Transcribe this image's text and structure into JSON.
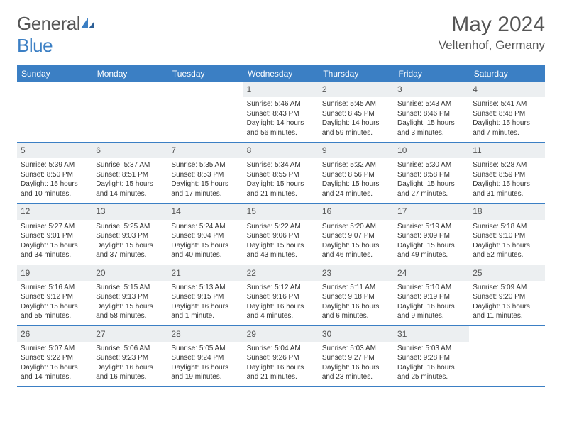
{
  "logo": {
    "pre": "General",
    "blue": "Blue"
  },
  "title": {
    "month_year": "May 2024",
    "location": "Veltenhof, Germany"
  },
  "style": {
    "header_bg": "#3b7fc4",
    "header_fg": "#ffffff",
    "daynum_bg": "#eceff1",
    "border": "#3b7fc4",
    "body_text": "#333333",
    "title_color": "#555555",
    "day_fontsize": 10,
    "header_fontsize": 12,
    "title_fontsize": 30,
    "location_fontsize": 17
  },
  "dow": [
    "Sunday",
    "Monday",
    "Tuesday",
    "Wednesday",
    "Thursday",
    "Friday",
    "Saturday"
  ],
  "weeks": [
    [
      {
        "n": "",
        "r": "",
        "s": "",
        "d": ""
      },
      {
        "n": "",
        "r": "",
        "s": "",
        "d": ""
      },
      {
        "n": "",
        "r": "",
        "s": "",
        "d": ""
      },
      {
        "n": "1",
        "r": "Sunrise: 5:46 AM",
        "s": "Sunset: 8:43 PM",
        "d": "Daylight: 14 hours and 56 minutes."
      },
      {
        "n": "2",
        "r": "Sunrise: 5:45 AM",
        "s": "Sunset: 8:45 PM",
        "d": "Daylight: 14 hours and 59 minutes."
      },
      {
        "n": "3",
        "r": "Sunrise: 5:43 AM",
        "s": "Sunset: 8:46 PM",
        "d": "Daylight: 15 hours and 3 minutes."
      },
      {
        "n": "4",
        "r": "Sunrise: 5:41 AM",
        "s": "Sunset: 8:48 PM",
        "d": "Daylight: 15 hours and 7 minutes."
      }
    ],
    [
      {
        "n": "5",
        "r": "Sunrise: 5:39 AM",
        "s": "Sunset: 8:50 PM",
        "d": "Daylight: 15 hours and 10 minutes."
      },
      {
        "n": "6",
        "r": "Sunrise: 5:37 AM",
        "s": "Sunset: 8:51 PM",
        "d": "Daylight: 15 hours and 14 minutes."
      },
      {
        "n": "7",
        "r": "Sunrise: 5:35 AM",
        "s": "Sunset: 8:53 PM",
        "d": "Daylight: 15 hours and 17 minutes."
      },
      {
        "n": "8",
        "r": "Sunrise: 5:34 AM",
        "s": "Sunset: 8:55 PM",
        "d": "Daylight: 15 hours and 21 minutes."
      },
      {
        "n": "9",
        "r": "Sunrise: 5:32 AM",
        "s": "Sunset: 8:56 PM",
        "d": "Daylight: 15 hours and 24 minutes."
      },
      {
        "n": "10",
        "r": "Sunrise: 5:30 AM",
        "s": "Sunset: 8:58 PM",
        "d": "Daylight: 15 hours and 27 minutes."
      },
      {
        "n": "11",
        "r": "Sunrise: 5:28 AM",
        "s": "Sunset: 8:59 PM",
        "d": "Daylight: 15 hours and 31 minutes."
      }
    ],
    [
      {
        "n": "12",
        "r": "Sunrise: 5:27 AM",
        "s": "Sunset: 9:01 PM",
        "d": "Daylight: 15 hours and 34 minutes."
      },
      {
        "n": "13",
        "r": "Sunrise: 5:25 AM",
        "s": "Sunset: 9:03 PM",
        "d": "Daylight: 15 hours and 37 minutes."
      },
      {
        "n": "14",
        "r": "Sunrise: 5:24 AM",
        "s": "Sunset: 9:04 PM",
        "d": "Daylight: 15 hours and 40 minutes."
      },
      {
        "n": "15",
        "r": "Sunrise: 5:22 AM",
        "s": "Sunset: 9:06 PM",
        "d": "Daylight: 15 hours and 43 minutes."
      },
      {
        "n": "16",
        "r": "Sunrise: 5:20 AM",
        "s": "Sunset: 9:07 PM",
        "d": "Daylight: 15 hours and 46 minutes."
      },
      {
        "n": "17",
        "r": "Sunrise: 5:19 AM",
        "s": "Sunset: 9:09 PM",
        "d": "Daylight: 15 hours and 49 minutes."
      },
      {
        "n": "18",
        "r": "Sunrise: 5:18 AM",
        "s": "Sunset: 9:10 PM",
        "d": "Daylight: 15 hours and 52 minutes."
      }
    ],
    [
      {
        "n": "19",
        "r": "Sunrise: 5:16 AM",
        "s": "Sunset: 9:12 PM",
        "d": "Daylight: 15 hours and 55 minutes."
      },
      {
        "n": "20",
        "r": "Sunrise: 5:15 AM",
        "s": "Sunset: 9:13 PM",
        "d": "Daylight: 15 hours and 58 minutes."
      },
      {
        "n": "21",
        "r": "Sunrise: 5:13 AM",
        "s": "Sunset: 9:15 PM",
        "d": "Daylight: 16 hours and 1 minute."
      },
      {
        "n": "22",
        "r": "Sunrise: 5:12 AM",
        "s": "Sunset: 9:16 PM",
        "d": "Daylight: 16 hours and 4 minutes."
      },
      {
        "n": "23",
        "r": "Sunrise: 5:11 AM",
        "s": "Sunset: 9:18 PM",
        "d": "Daylight: 16 hours and 6 minutes."
      },
      {
        "n": "24",
        "r": "Sunrise: 5:10 AM",
        "s": "Sunset: 9:19 PM",
        "d": "Daylight: 16 hours and 9 minutes."
      },
      {
        "n": "25",
        "r": "Sunrise: 5:09 AM",
        "s": "Sunset: 9:20 PM",
        "d": "Daylight: 16 hours and 11 minutes."
      }
    ],
    [
      {
        "n": "26",
        "r": "Sunrise: 5:07 AM",
        "s": "Sunset: 9:22 PM",
        "d": "Daylight: 16 hours and 14 minutes."
      },
      {
        "n": "27",
        "r": "Sunrise: 5:06 AM",
        "s": "Sunset: 9:23 PM",
        "d": "Daylight: 16 hours and 16 minutes."
      },
      {
        "n": "28",
        "r": "Sunrise: 5:05 AM",
        "s": "Sunset: 9:24 PM",
        "d": "Daylight: 16 hours and 19 minutes."
      },
      {
        "n": "29",
        "r": "Sunrise: 5:04 AM",
        "s": "Sunset: 9:26 PM",
        "d": "Daylight: 16 hours and 21 minutes."
      },
      {
        "n": "30",
        "r": "Sunrise: 5:03 AM",
        "s": "Sunset: 9:27 PM",
        "d": "Daylight: 16 hours and 23 minutes."
      },
      {
        "n": "31",
        "r": "Sunrise: 5:03 AM",
        "s": "Sunset: 9:28 PM",
        "d": "Daylight: 16 hours and 25 minutes."
      },
      {
        "n": "",
        "r": "",
        "s": "",
        "d": ""
      }
    ]
  ]
}
